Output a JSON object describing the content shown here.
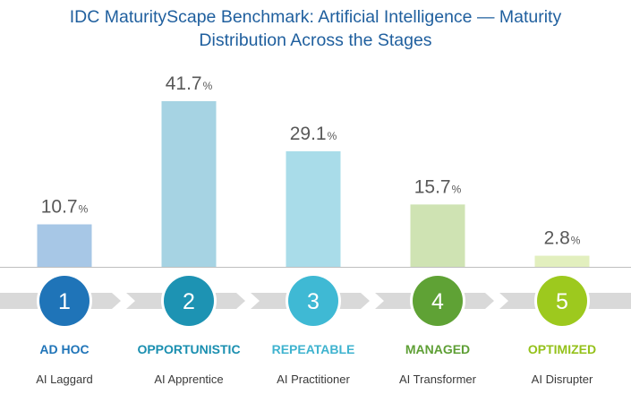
{
  "chart_data": {
    "type": "bar",
    "title": "IDC MaturityScape Benchmark: Artificial Intelligence — Maturity Distribution Across the Stages",
    "title_lines": [
      "IDC MaturityScape Benchmark: Artificial Intelligence — Maturity",
      "Distribution Across the Stages"
    ],
    "unit": "%",
    "ylim": [
      0,
      41.7
    ],
    "grid": false,
    "legend": "none",
    "categories": [
      "AD HOC",
      "OPPORTUNISTIC",
      "REPEATABLE",
      "MANAGED",
      "OPTIMIZED"
    ],
    "values": [
      10.7,
      41.7,
      29.1,
      15.7,
      2.8
    ],
    "value_labels": [
      "10.7",
      "41.7",
      "29.1",
      "15.7",
      "2.8"
    ],
    "stages": [
      {
        "number": "1",
        "name": "AD HOC",
        "subtitle": "AI Laggard",
        "value": 10.7,
        "label": "10.7",
        "bar_color": "#a7c7e6",
        "circle_color": "#1f74b8",
        "name_color": "#1f74b8"
      },
      {
        "number": "2",
        "name": "OPPORTUNISTIC",
        "subtitle": "AI Apprentice",
        "value": 41.7,
        "label": "41.7",
        "bar_color": "#a6d3e3",
        "circle_color": "#1d93b3",
        "name_color": "#1a8fb0"
      },
      {
        "number": "3",
        "name": "REPEATABLE",
        "subtitle": "AI Practitioner",
        "value": 29.1,
        "label": "29.1",
        "bar_color": "#a9dce9",
        "circle_color": "#3fb9d4",
        "name_color": "#3fb3cf"
      },
      {
        "number": "4",
        "name": "MANAGED",
        "subtitle": "AI Transformer",
        "value": 15.7,
        "label": "15.7",
        "bar_color": "#cfe3b3",
        "circle_color": "#5fa235",
        "name_color": "#5e9f35"
      },
      {
        "number": "5",
        "name": "OPTIMIZED",
        "subtitle": "AI Disrupter",
        "value": 2.8,
        "label": "2.8",
        "bar_color": "#e2efbe",
        "circle_color": "#9dc91e",
        "name_color": "#94c11a"
      }
    ]
  },
  "colors": {
    "title": "#1f5f9e",
    "baseline": "#bfbfbf",
    "arrow": "#d9d9d9",
    "value_text": "#595959"
  }
}
